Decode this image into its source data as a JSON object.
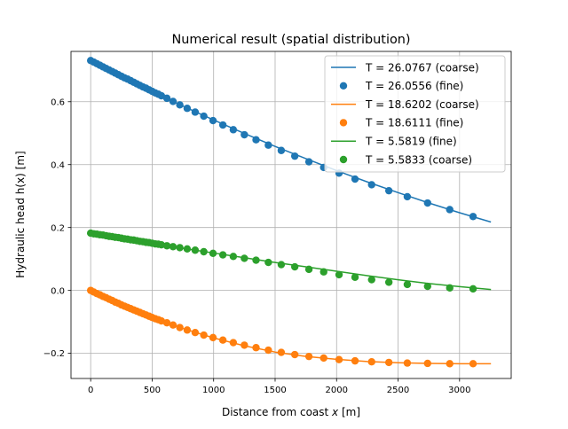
{
  "chart_data": {
    "type": "line",
    "title": "Numerical result (spatial distribution)",
    "xlabel_prefix": "Distance from coast ",
    "xlabel_var": "x",
    "xlabel_suffix": " [m]",
    "ylabel": "Hydraulic head h(x) [m]",
    "xlim": [
      -160,
      3420
    ],
    "ylim": [
      -0.28,
      0.76
    ],
    "xticks": [
      0,
      500,
      1000,
      1500,
      2000,
      2500,
      3000
    ],
    "xtick_labels": [
      "0",
      "500",
      "1000",
      "1500",
      "2000",
      "2500",
      "3000"
    ],
    "yticks": [
      -0.2,
      0.0,
      0.2,
      0.4,
      0.6
    ],
    "ytick_labels": [
      "−0.2",
      "0.0",
      "0.2",
      "0.4",
      "0.6"
    ],
    "grid": true,
    "legend_position": "top-right",
    "series": [
      {
        "name": "T = 26.0767 (coarse)",
        "style": "line",
        "color": "#1f77b4",
        "x": [
          0,
          250,
          500,
          750,
          1000,
          1250,
          1500,
          1750,
          2000,
          2250,
          2500,
          2750,
          3000,
          3250
        ],
        "y": [
          0.731,
          0.681,
          0.633,
          0.586,
          0.542,
          0.499,
          0.458,
          0.419,
          0.381,
          0.345,
          0.311,
          0.278,
          0.247,
          0.218
        ]
      },
      {
        "name": "T = 26.0556 (fine)",
        "style": "markers",
        "color": "#1f77b4",
        "x": [
          0,
          25,
          50,
          75,
          100,
          125,
          150,
          175,
          200,
          225,
          250,
          275,
          300,
          325,
          350,
          375,
          400,
          425,
          450,
          475,
          500,
          525,
          550,
          575,
          620,
          670,
          725,
          785,
          850,
          920,
          995,
          1075,
          1160,
          1250,
          1345,
          1445,
          1550,
          1660,
          1775,
          1895,
          2020,
          2150,
          2285,
          2425,
          2575,
          2740,
          2920,
          3110
        ],
        "y": [
          0.731,
          0.726,
          0.721,
          0.716,
          0.711,
          0.706,
          0.701,
          0.696,
          0.691,
          0.686,
          0.681,
          0.676,
          0.672,
          0.667,
          0.662,
          0.657,
          0.652,
          0.647,
          0.643,
          0.638,
          0.633,
          0.628,
          0.624,
          0.619,
          0.611,
          0.601,
          0.59,
          0.579,
          0.567,
          0.554,
          0.54,
          0.526,
          0.511,
          0.495,
          0.479,
          0.462,
          0.445,
          0.427,
          0.409,
          0.391,
          0.373,
          0.354,
          0.336,
          0.317,
          0.298,
          0.278,
          0.257,
          0.235
        ]
      },
      {
        "name": "T = 18.6202 (coarse)",
        "style": "line",
        "color": "#ff7f0e",
        "x": [
          0,
          250,
          500,
          750,
          1000,
          1250,
          1500,
          1750,
          2000,
          2250,
          2500,
          2750,
          3000,
          3250
        ],
        "y": [
          0.0,
          -0.046,
          -0.086,
          -0.121,
          -0.151,
          -0.176,
          -0.196,
          -0.21,
          -0.219,
          -0.226,
          -0.23,
          -0.232,
          -0.233,
          -0.233
        ]
      },
      {
        "name": "T = 18.6111 (fine)",
        "style": "markers",
        "color": "#ff7f0e",
        "x": [
          0,
          25,
          50,
          75,
          100,
          125,
          150,
          175,
          200,
          225,
          250,
          275,
          300,
          325,
          350,
          375,
          400,
          425,
          450,
          475,
          500,
          525,
          550,
          575,
          620,
          670,
          725,
          785,
          850,
          920,
          995,
          1075,
          1160,
          1250,
          1345,
          1445,
          1550,
          1660,
          1775,
          1895,
          2020,
          2150,
          2285,
          2425,
          2575,
          2740,
          2920,
          3110
        ],
        "y": [
          0.0,
          -0.005,
          -0.01,
          -0.014,
          -0.019,
          -0.023,
          -0.028,
          -0.032,
          -0.037,
          -0.041,
          -0.046,
          -0.05,
          -0.054,
          -0.058,
          -0.062,
          -0.066,
          -0.07,
          -0.074,
          -0.078,
          -0.082,
          -0.086,
          -0.09,
          -0.093,
          -0.097,
          -0.103,
          -0.11,
          -0.118,
          -0.126,
          -0.134,
          -0.142,
          -0.15,
          -0.158,
          -0.166,
          -0.174,
          -0.182,
          -0.19,
          -0.197,
          -0.204,
          -0.21,
          -0.215,
          -0.22,
          -0.224,
          -0.227,
          -0.229,
          -0.231,
          -0.232,
          -0.233,
          -0.233
        ]
      },
      {
        "name": "T = 5.5819 (fine)",
        "style": "line",
        "color": "#2ca02c",
        "x": [
          0,
          250,
          500,
          750,
          1000,
          1250,
          1500,
          1750,
          2000,
          2250,
          2500,
          2750,
          3000,
          3250
        ],
        "y": [
          0.182,
          0.166,
          0.15,
          0.134,
          0.119,
          0.104,
          0.089,
          0.075,
          0.061,
          0.047,
          0.034,
          0.022,
          0.012,
          0.003
        ]
      },
      {
        "name": "T = 5.5833 (coarse)",
        "style": "markers",
        "color": "#2ca02c",
        "x": [
          0,
          25,
          50,
          75,
          100,
          125,
          150,
          175,
          200,
          225,
          250,
          275,
          300,
          325,
          350,
          375,
          400,
          425,
          450,
          475,
          500,
          525,
          550,
          575,
          620,
          670,
          725,
          785,
          850,
          920,
          995,
          1075,
          1160,
          1250,
          1345,
          1445,
          1550,
          1660,
          1775,
          1895,
          2020,
          2150,
          2285,
          2425,
          2575,
          2740,
          2920,
          3110
        ],
        "y": [
          0.182,
          0.18,
          0.179,
          0.177,
          0.176,
          0.174,
          0.172,
          0.171,
          0.169,
          0.168,
          0.166,
          0.164,
          0.163,
          0.161,
          0.16,
          0.158,
          0.156,
          0.155,
          0.153,
          0.152,
          0.15,
          0.148,
          0.147,
          0.145,
          0.142,
          0.139,
          0.136,
          0.132,
          0.128,
          0.123,
          0.118,
          0.113,
          0.108,
          0.102,
          0.096,
          0.089,
          0.082,
          0.075,
          0.067,
          0.059,
          0.05,
          0.042,
          0.034,
          0.026,
          0.019,
          0.013,
          0.008,
          0.005
        ]
      }
    ]
  }
}
